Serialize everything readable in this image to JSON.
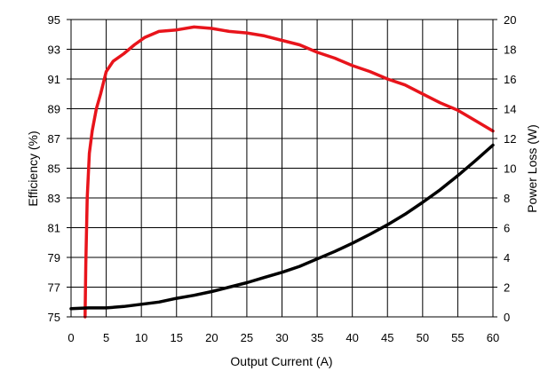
{
  "chart_data": {
    "type": "line",
    "title": "",
    "xlabel": "Output Current (A)",
    "ylabel": "Efficiency (%)",
    "y2label": "Power Loss (W)",
    "xlim": [
      0,
      60
    ],
    "ylim": [
      75,
      95
    ],
    "y2lim": [
      0,
      20
    ],
    "x_ticks": [
      0,
      5,
      10,
      15,
      20,
      25,
      30,
      35,
      40,
      45,
      50,
      55,
      60
    ],
    "y_ticks": [
      75,
      77,
      79,
      81,
      83,
      85,
      87,
      89,
      91,
      93,
      95
    ],
    "y2_ticks": [
      0,
      2,
      4,
      6,
      8,
      10,
      12,
      14,
      16,
      18,
      20
    ],
    "grid": true,
    "series": [
      {
        "axis": "left",
        "color": "#e8141b",
        "points": [
          [
            2.0,
            75.0
          ],
          [
            2.1,
            78.5
          ],
          [
            2.3,
            83.0
          ],
          [
            2.6,
            86.0
          ],
          [
            3.0,
            87.5
          ],
          [
            3.6,
            89.0
          ],
          [
            4.2,
            90.0
          ],
          [
            5.0,
            91.5
          ],
          [
            6.0,
            92.2
          ],
          [
            7.5,
            92.7
          ],
          [
            9.0,
            93.3
          ],
          [
            10.5,
            93.8
          ],
          [
            12.5,
            94.2
          ],
          [
            15.0,
            94.3
          ],
          [
            17.5,
            94.5
          ],
          [
            20.0,
            94.4
          ],
          [
            22.5,
            94.2
          ],
          [
            25.0,
            94.1
          ],
          [
            27.5,
            93.9
          ],
          [
            30.0,
            93.6
          ],
          [
            32.5,
            93.3
          ],
          [
            35.0,
            92.8
          ],
          [
            37.5,
            92.4
          ],
          [
            40.0,
            91.9
          ],
          [
            42.5,
            91.5
          ],
          [
            45.0,
            91.0
          ],
          [
            47.5,
            90.6
          ],
          [
            50.0,
            90.0
          ],
          [
            52.5,
            89.4
          ],
          [
            55.0,
            88.9
          ],
          [
            57.5,
            88.2
          ],
          [
            60.0,
            87.5
          ]
        ]
      },
      {
        "axis": "right",
        "color": "#000000",
        "points": [
          [
            0.0,
            0.55
          ],
          [
            2.5,
            0.6
          ],
          [
            5.0,
            0.6
          ],
          [
            7.5,
            0.7
          ],
          [
            10.0,
            0.85
          ],
          [
            12.5,
            1.0
          ],
          [
            15.0,
            1.25
          ],
          [
            17.5,
            1.45
          ],
          [
            20.0,
            1.7
          ],
          [
            22.5,
            2.0
          ],
          [
            25.0,
            2.3
          ],
          [
            27.5,
            2.65
          ],
          [
            30.0,
            3.0
          ],
          [
            32.5,
            3.4
          ],
          [
            35.0,
            3.9
          ],
          [
            37.5,
            4.4
          ],
          [
            40.0,
            4.95
          ],
          [
            42.5,
            5.55
          ],
          [
            45.0,
            6.2
          ],
          [
            47.5,
            6.9
          ],
          [
            50.0,
            7.7
          ],
          [
            52.5,
            8.55
          ],
          [
            55.0,
            9.5
          ],
          [
            57.5,
            10.5
          ],
          [
            60.0,
            11.55
          ]
        ]
      }
    ]
  }
}
